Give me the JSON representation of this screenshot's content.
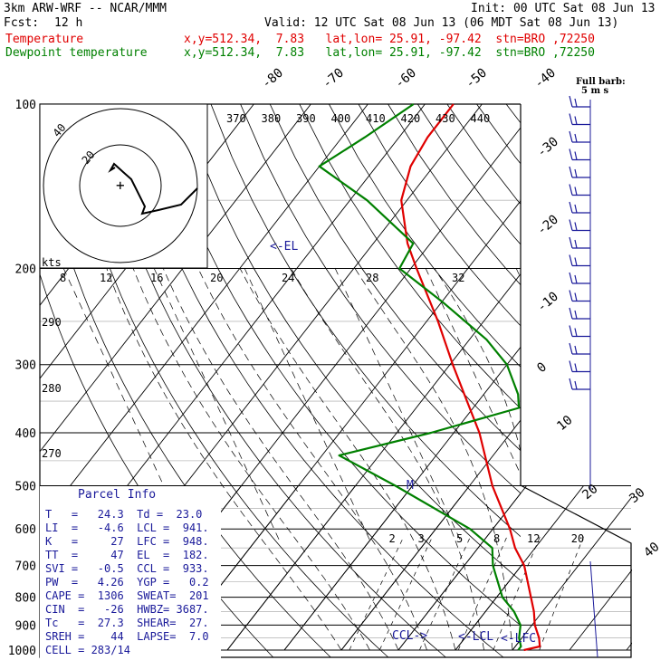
{
  "header": {
    "model": "3km ARW-WRF -- NCAR/MMM",
    "init": "Init: 00 UTC Sat 08 Jun 13",
    "fcst_label": "Fcst:",
    "fcst_value": "12 h",
    "valid": "Valid: 12 UTC Sat 08 Jun 13 (06 MDT Sat 08 Jun 13)",
    "line_temp_label": "Temperature",
    "line_temp_info": "x,y=512.34,  7.83   lat,lon= 25.91, -97.42  stn=BRO ,72250",
    "line_dew_label": "Dewpoint temperature",
    "line_dew_info": "x,y=512.34,  7.83   lat,lon= 25.91, -97.42  stn=BRO ,72250",
    "barb_legend_1": "Full barb:",
    "barb_legend_2": "5 m s"
  },
  "colors": {
    "temperature": "#e00000",
    "dewpoint": "#008000",
    "parcel_text": "#1a1a9a",
    "grid": "#000000"
  },
  "chart_data": {
    "type": "line",
    "pressure_levels": [
      100,
      200,
      300,
      400,
      500,
      600,
      700,
      800,
      900,
      1000
    ],
    "ylim_hPa": [
      100,
      1000
    ],
    "y_scale": "log-pressure",
    "skew_isotherm_labels": [
      "-80",
      "-70",
      "-60",
      "-50",
      "-40",
      "-30",
      "-20",
      "-10",
      "0",
      "10",
      "20",
      "30",
      "40"
    ],
    "theta_labels_top": [
      "370",
      "380",
      "390",
      "400",
      "410",
      "420",
      "430",
      "440"
    ],
    "theta_labels_left": [
      "290",
      "280",
      "270"
    ],
    "mixing_ratio_labels": [
      "2",
      "3",
      "5",
      "8",
      "12",
      "20"
    ],
    "hodograph": {
      "units_label": "kts",
      "ring_labels": [
        "20",
        "40"
      ],
      "speed_ticks": [
        "8",
        "12",
        "16",
        "20",
        "24",
        "28",
        "32"
      ]
    },
    "level_markers": {
      "el": "<-EL",
      "m": "M",
      "ccl": "CCL->",
      "lcl": "<-LCL",
      "lfc": "<-LFC"
    },
    "series": [
      {
        "name": "Temperature",
        "points": [
          [
            1000,
            22
          ],
          [
            985,
            24.3
          ],
          [
            950,
            23
          ],
          [
            900,
            20.5
          ],
          [
            850,
            18.5
          ],
          [
            800,
            16
          ],
          [
            700,
            10.5
          ],
          [
            650,
            6.5
          ],
          [
            600,
            3
          ],
          [
            500,
            -6
          ],
          [
            400,
            -15.5
          ],
          [
            350,
            -22
          ],
          [
            300,
            -29.5
          ],
          [
            250,
            -38
          ],
          [
            200,
            -49
          ],
          [
            180,
            -54
          ],
          [
            150,
            -61
          ],
          [
            130,
            -64
          ],
          [
            115,
            -65
          ],
          [
            100,
            -65
          ]
        ]
      },
      {
        "name": "Dewpoint temperature",
        "points": [
          [
            1000,
            21
          ],
          [
            985,
            21
          ],
          [
            950,
            19.5
          ],
          [
            900,
            18
          ],
          [
            850,
            15
          ],
          [
            800,
            11
          ],
          [
            700,
            5
          ],
          [
            650,
            2.5
          ],
          [
            600,
            -4
          ],
          [
            500,
            -23
          ],
          [
            440,
            -37
          ],
          [
            400,
            -24
          ],
          [
            360,
            -12
          ],
          [
            340,
            -14
          ],
          [
            300,
            -20
          ],
          [
            270,
            -27
          ],
          [
            230,
            -40
          ],
          [
            200,
            -52
          ],
          [
            180,
            -53
          ],
          [
            150,
            -67
          ],
          [
            130,
            -80
          ],
          [
            115,
            -76
          ],
          [
            100,
            -72
          ]
        ]
      }
    ]
  },
  "parcel_info": {
    "title": "Parcel Info",
    "rows": [
      "T   =   24.3  Td =  23.0",
      "LI  =   -4.6  LCL =  941.",
      "K   =     27  LFC =  948.",
      "TT  =     47  EL  =  182.",
      "SVI =   -0.5  CCL =  933.",
      "PW  =   4.26  YGP =   0.2",
      "CAPE =  1306  SWEAT=  201",
      "CIN  =   -26  HWBZ= 3687.",
      "Tc   =  27.3  SHEAR=  27.",
      "SREH =    44  LAPSE=  7.0",
      "CELL = 283/14"
    ]
  }
}
